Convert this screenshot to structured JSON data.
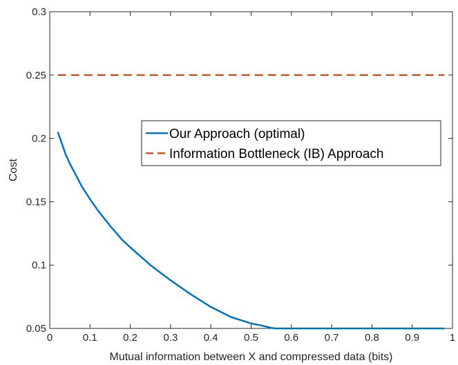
{
  "chart_data": {
    "type": "line",
    "title": "",
    "xlabel": "Mutual information between X and compressed data (bits)",
    "ylabel": "Cost",
    "xlim": [
      0,
      1
    ],
    "ylim": [
      0.05,
      0.3
    ],
    "xticks": [
      0,
      0.1,
      0.2,
      0.3,
      0.4,
      0.5,
      0.6,
      0.7,
      0.8,
      0.9,
      1
    ],
    "xtick_labels": [
      "0",
      "0.1",
      "0.2",
      "0.3",
      "0.4",
      "0.5",
      "0.6",
      "0.7",
      "0.8",
      "0.9",
      "1"
    ],
    "yticks": [
      0.05,
      0.1,
      0.15,
      0.2,
      0.25,
      0.3
    ],
    "ytick_labels": [
      "0.05",
      "0.1",
      "0.15",
      "0.2",
      "0.25",
      "0.3"
    ],
    "grid": false,
    "legend_position": "center-right",
    "series": [
      {
        "name": "Our Approach (optimal)",
        "color": "#0072BD",
        "style": "solid",
        "x": [
          0.02,
          0.03,
          0.04,
          0.05,
          0.06,
          0.08,
          0.1,
          0.12,
          0.15,
          0.18,
          0.2,
          0.25,
          0.3,
          0.35,
          0.4,
          0.45,
          0.5,
          0.53,
          0.55,
          0.56,
          0.6,
          0.7,
          0.8,
          0.9,
          0.98
        ],
        "y": [
          0.205,
          0.196,
          0.187,
          0.18,
          0.174,
          0.162,
          0.152,
          0.143,
          0.131,
          0.12,
          0.114,
          0.1,
          0.088,
          0.077,
          0.067,
          0.059,
          0.054,
          0.052,
          0.0505,
          0.05,
          0.05,
          0.05,
          0.05,
          0.05,
          0.05
        ]
      },
      {
        "name": "Information Bottleneck (IB) Approach",
        "color": "#D95319",
        "style": "dashed",
        "x": [
          0.02,
          0.1,
          0.2,
          0.3,
          0.4,
          0.5,
          0.6,
          0.7,
          0.8,
          0.9,
          0.98
        ],
        "y": [
          0.25,
          0.25,
          0.25,
          0.25,
          0.25,
          0.25,
          0.25,
          0.25,
          0.25,
          0.25,
          0.25
        ]
      }
    ]
  }
}
